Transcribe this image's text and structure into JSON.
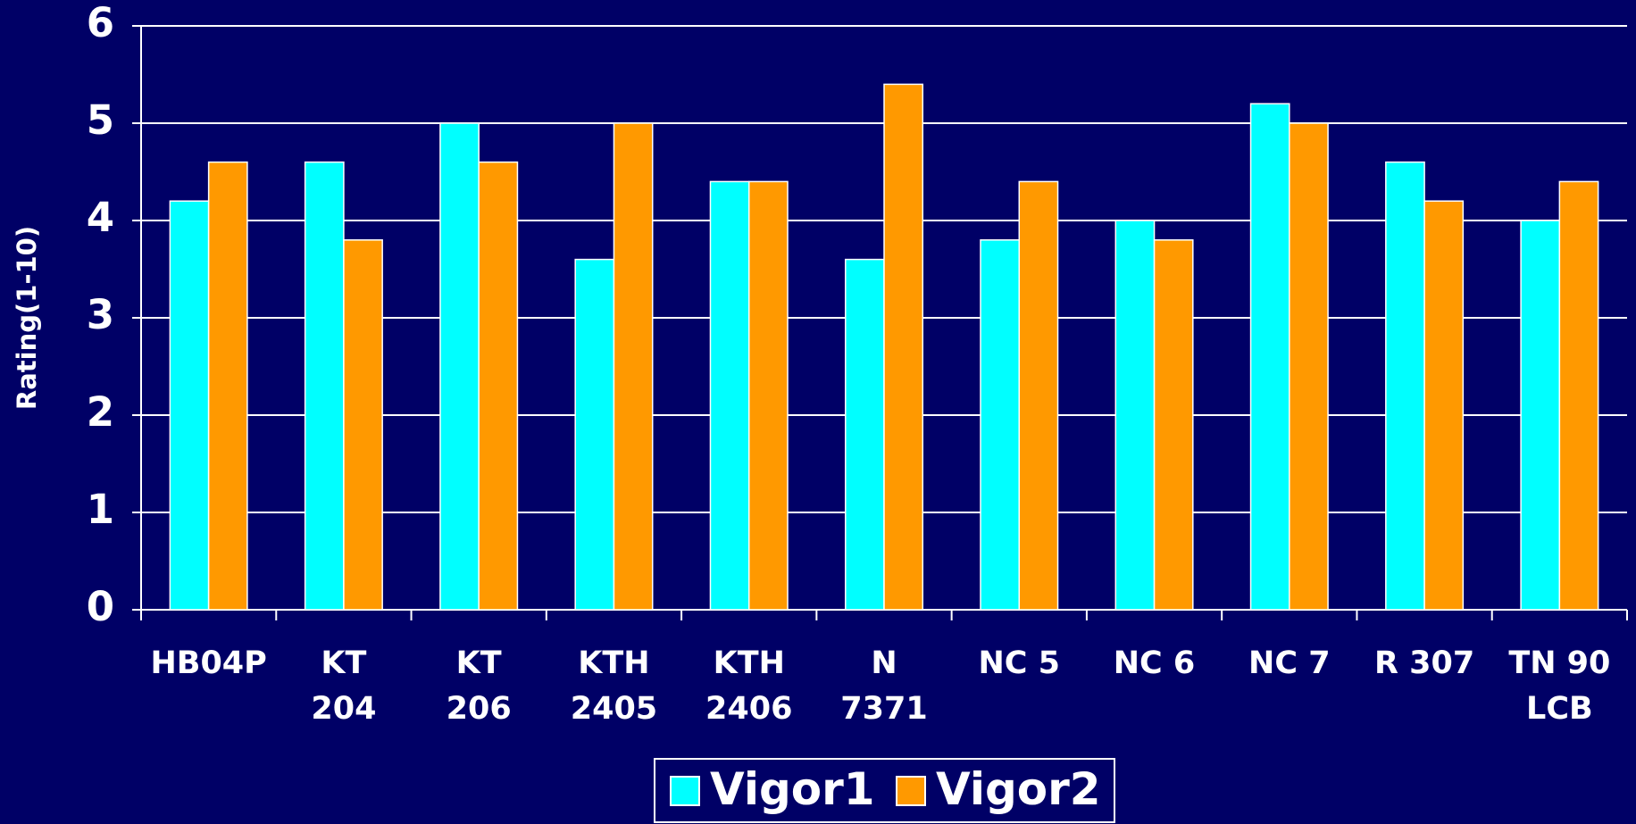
{
  "chart_data": {
    "type": "bar",
    "y_label": "Rating(1-10)",
    "categories": [
      [
        "HB04P"
      ],
      [
        "KT",
        "204"
      ],
      [
        "KT",
        "206"
      ],
      [
        "KTH",
        "2405"
      ],
      [
        "KTH",
        "2406"
      ],
      [
        "N",
        "7371"
      ],
      [
        "NC 5"
      ],
      [
        "NC 6"
      ],
      [
        "NC 7"
      ],
      [
        "R 307"
      ],
      [
        "TN 90",
        "LCB"
      ]
    ],
    "series": [
      {
        "name": "Vigor1",
        "color": "#00ffff",
        "values": [
          4.2,
          4.6,
          5.0,
          3.6,
          4.4,
          3.6,
          3.8,
          4.0,
          5.2,
          4.6,
          4.0
        ]
      },
      {
        "name": "Vigor2",
        "color": "#ff9900",
        "values": [
          4.6,
          3.8,
          4.6,
          5.0,
          4.4,
          5.4,
          4.4,
          3.8,
          5.0,
          4.2,
          4.4
        ]
      }
    ],
    "ylim": [
      0,
      6
    ],
    "yticks": [
      0,
      1,
      2,
      3,
      4,
      5,
      6
    ],
    "grid": true,
    "legend": "bottom"
  }
}
